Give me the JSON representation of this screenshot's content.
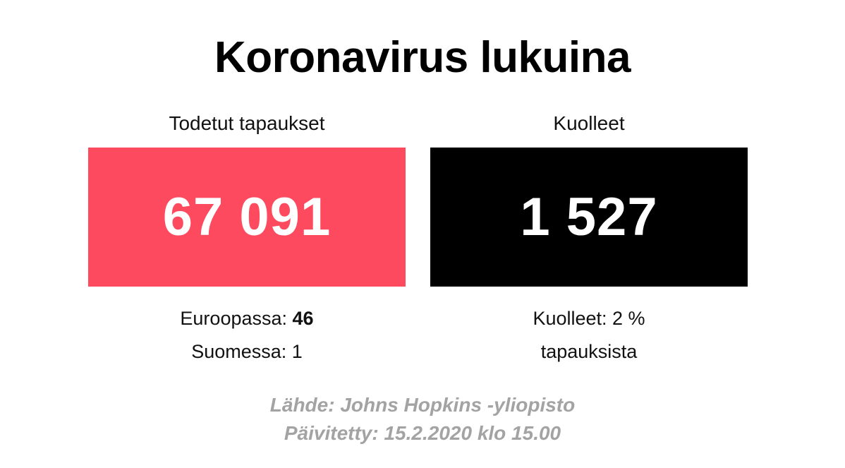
{
  "title": "Koronavirus lukuina",
  "confirmed": {
    "label": "Todetut tapaukset",
    "value": "67 091",
    "europe_label": "Euroopassa:",
    "europe_value": "46",
    "finland_label": "Suomessa:",
    "finland_value": "1",
    "box_color": "#fe4a5f"
  },
  "deaths": {
    "label": "Kuolleet",
    "value": "1 527",
    "rate_line1": "Kuolleet: 2 %",
    "rate_line2": "tapauksista",
    "box_color": "#000000"
  },
  "footer": {
    "source": "Lähde: Johns Hopkins -yliopisto",
    "updated": "Päivitetty: 15.2.2020 klo 15.00"
  }
}
